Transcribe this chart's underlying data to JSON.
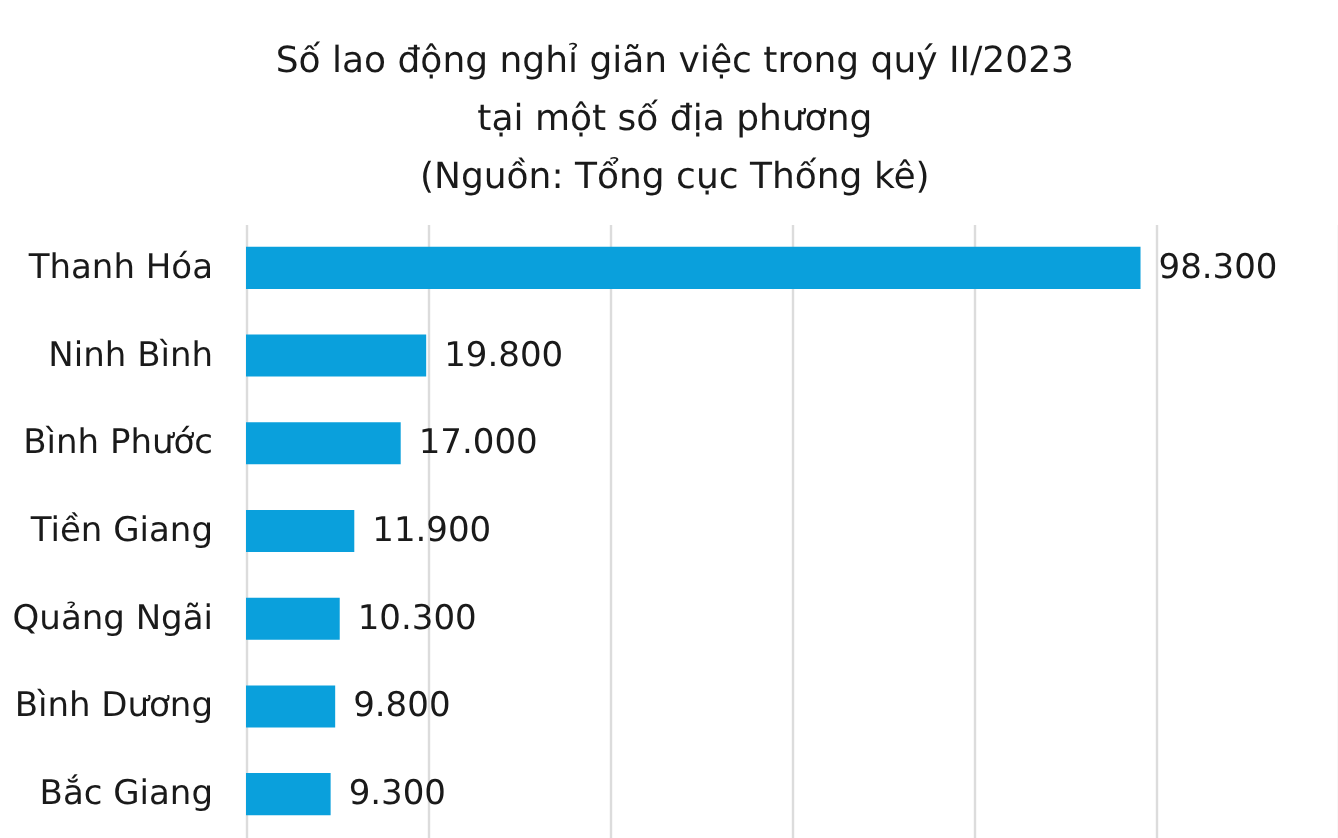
{
  "chart_data": {
    "type": "bar",
    "orientation": "horizontal",
    "title": "Số lao động nghỉ giãn việc trong quý II/2023\ntại một số địa phương",
    "annotations": [
      "(Nguồn: Tổng cục Thống kê)"
    ],
    "categories": [
      "Thanh Hóa",
      "Ninh Bình",
      "Bình Phước",
      "Tiền Giang",
      "Quảng Ngãi",
      "Bình Dương",
      "Bắc Giang"
    ],
    "values": [
      98300,
      19800,
      17000,
      11900,
      10300,
      9800,
      9300
    ],
    "value_labels": [
      "98.300",
      "19.800",
      "17.000",
      "11.900",
      "10.300",
      "9.800",
      "9.300"
    ],
    "color": "#0aa0dc",
    "xlim": [
      0,
      120000
    ],
    "xticks": [
      {
        "value": 0,
        "label": null
      },
      {
        "value": 20000,
        "label": null
      },
      {
        "value": 40000,
        "label": null
      },
      {
        "value": 60000,
        "label": null
      },
      {
        "value": 80000,
        "label": null
      },
      {
        "value": 100000,
        "label": null
      },
      {
        "value": 120000,
        "label": null
      }
    ],
    "grid": "x",
    "tick_labels": "y"
  }
}
